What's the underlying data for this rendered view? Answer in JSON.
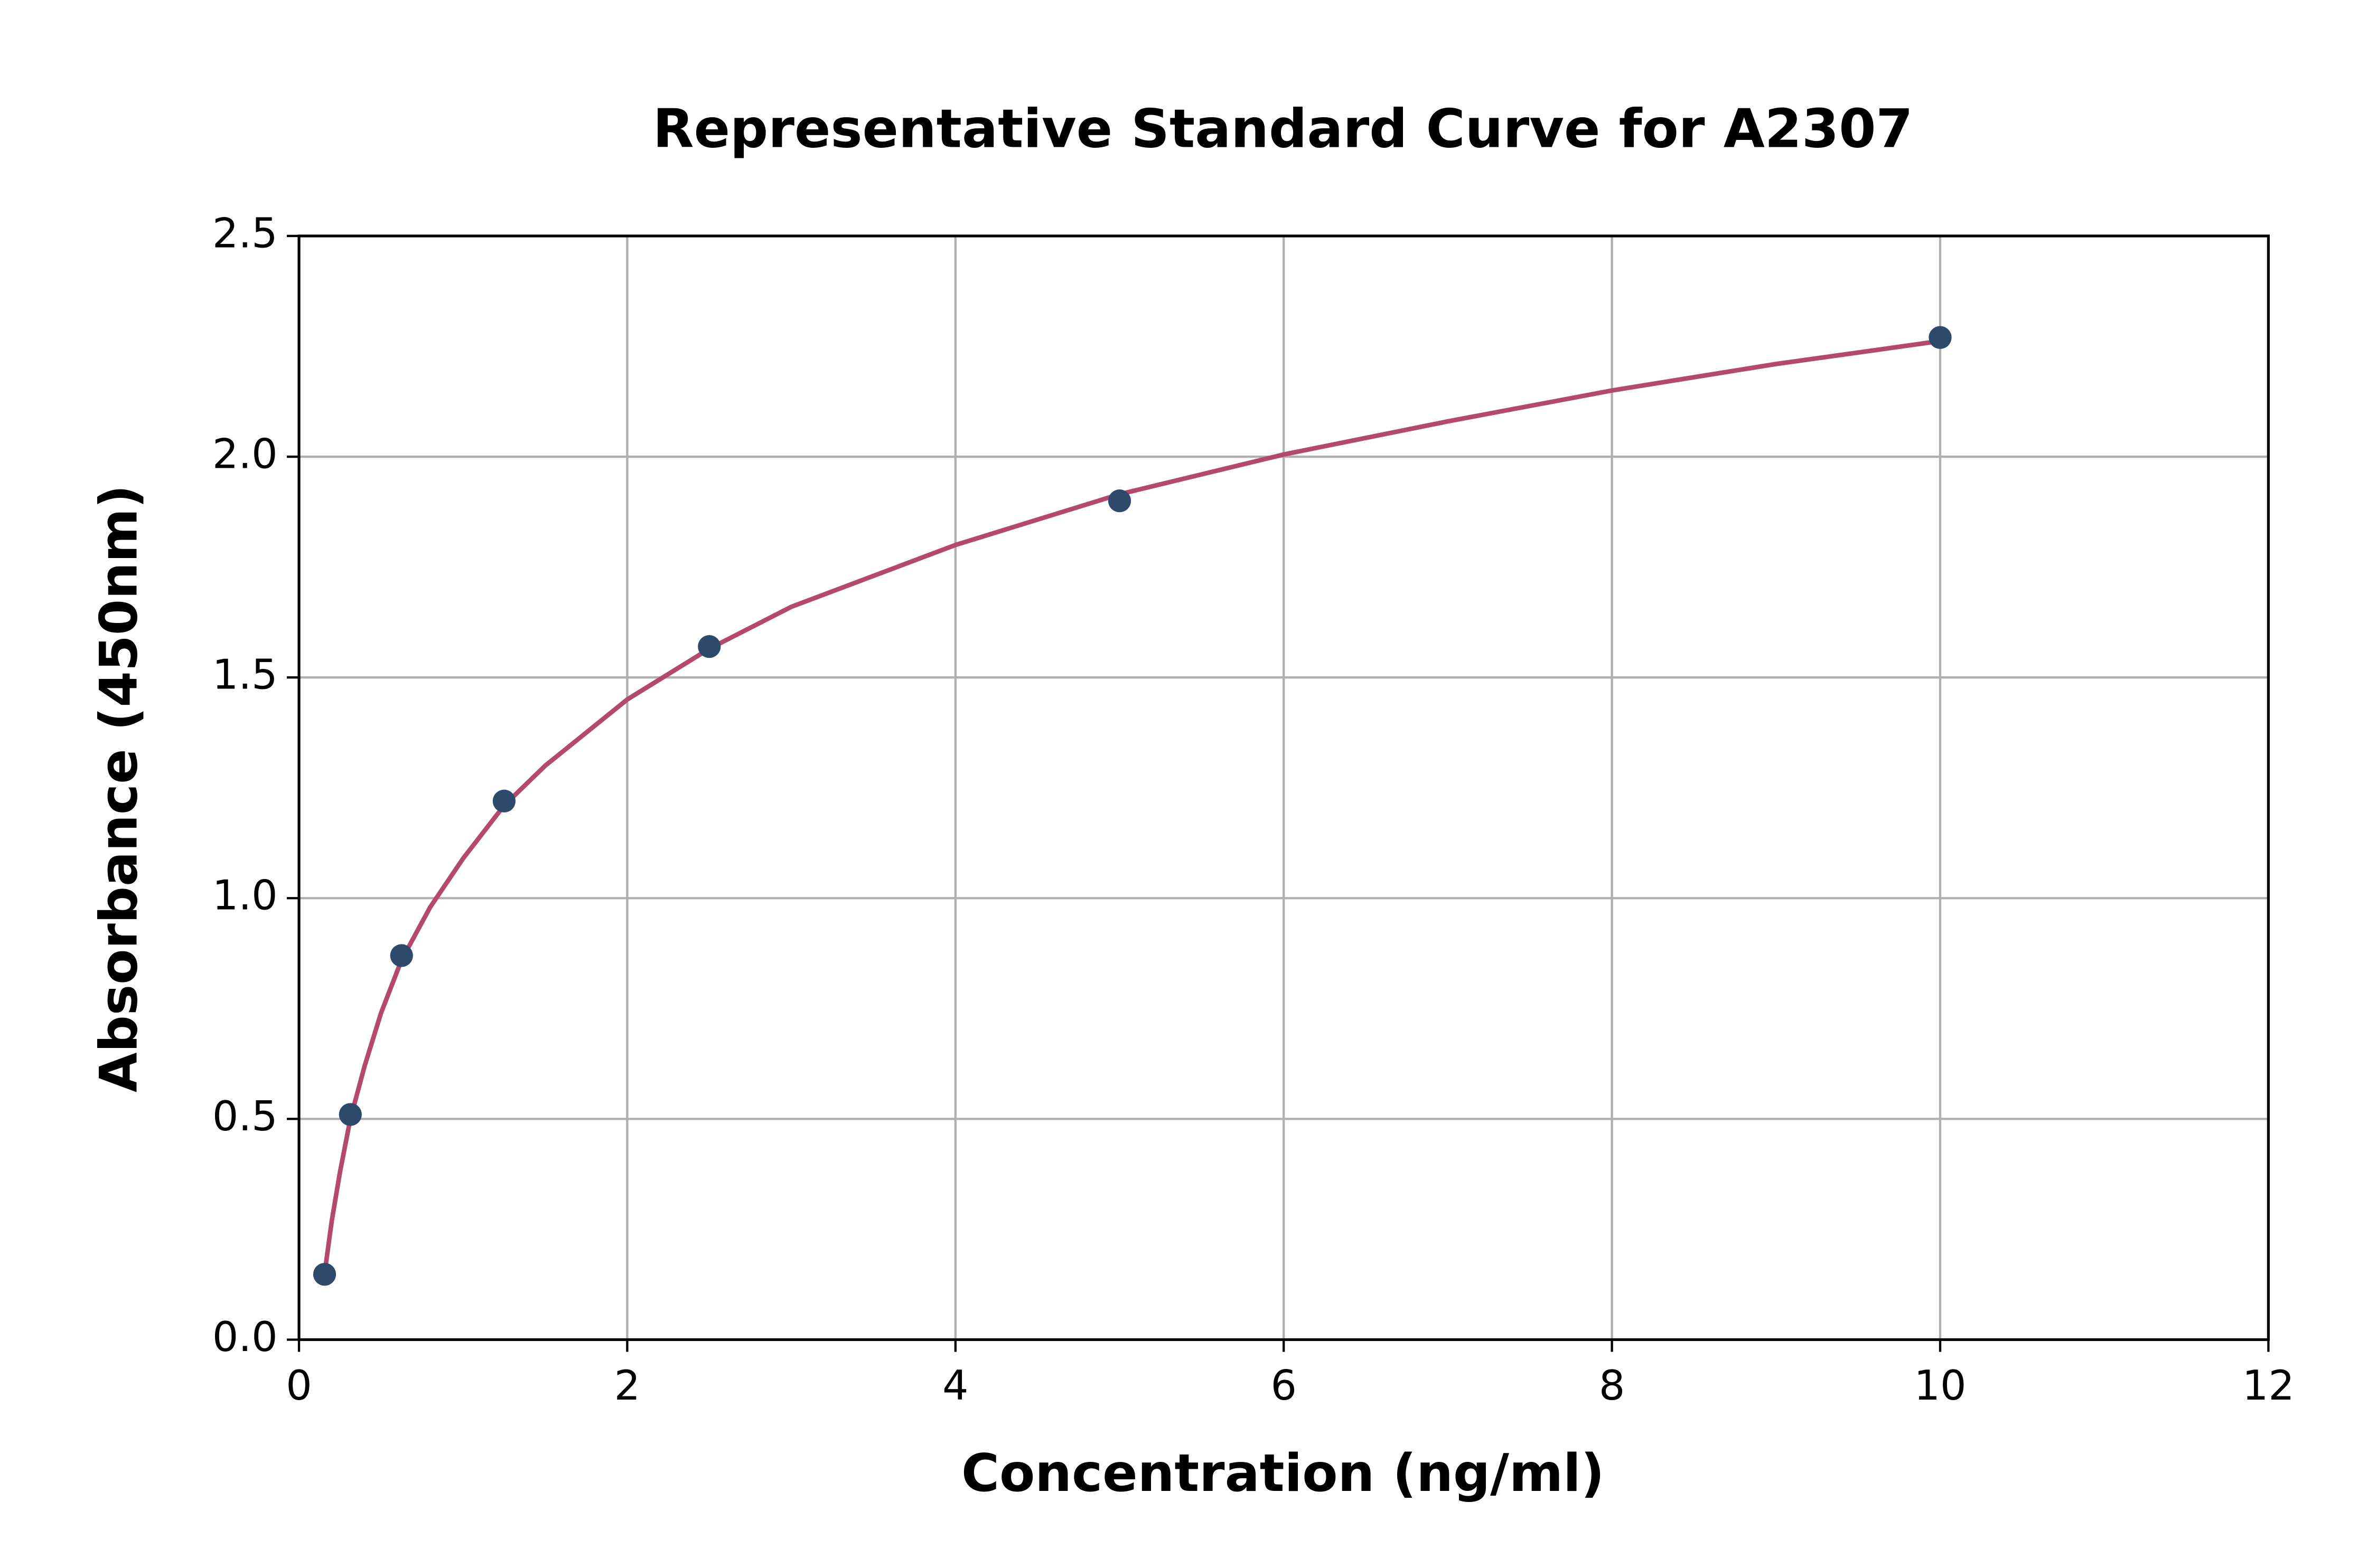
{
  "chart_data": {
    "type": "scatter",
    "title": "Representative Standard Curve for A2307",
    "x_label": "Concentration (ng/ml)",
    "y_label": "Absorbance (450nm)",
    "series": [
      {
        "style": "markers",
        "color": "#2d4a6b",
        "x": [
          0.156,
          0.313,
          0.625,
          1.25,
          2.5,
          5,
          10
        ],
        "values": [
          0.148,
          0.51,
          0.87,
          1.22,
          1.57,
          1.9,
          2.27
        ]
      },
      {
        "style": "line",
        "color": "#b5486d",
        "x": [
          0.156,
          0.2,
          0.25,
          0.313,
          0.4,
          0.5,
          0.625,
          0.8,
          1,
          1.25,
          1.5,
          2,
          2.5,
          3,
          4,
          5,
          6,
          7,
          8,
          9,
          10
        ],
        "values": [
          0.15,
          0.27,
          0.38,
          0.5,
          0.62,
          0.74,
          0.86,
          0.98,
          1.09,
          1.21,
          1.3,
          1.45,
          1.565,
          1.66,
          1.8,
          1.915,
          2.005,
          2.08,
          2.15,
          2.21,
          2.262
        ]
      }
    ],
    "xlim": [
      0,
      12
    ],
    "xticks": [
      0,
      2,
      4,
      6,
      8,
      10,
      12
    ],
    "ylim": [
      0,
      2.5
    ],
    "yticks": [
      {
        "value": 0,
        "label": "0.0"
      },
      0.5,
      {
        "value": 1,
        "label": "1.0"
      },
      1.5,
      {
        "value": 2,
        "label": "2.0"
      },
      2.5
    ],
    "grid": true
  }
}
